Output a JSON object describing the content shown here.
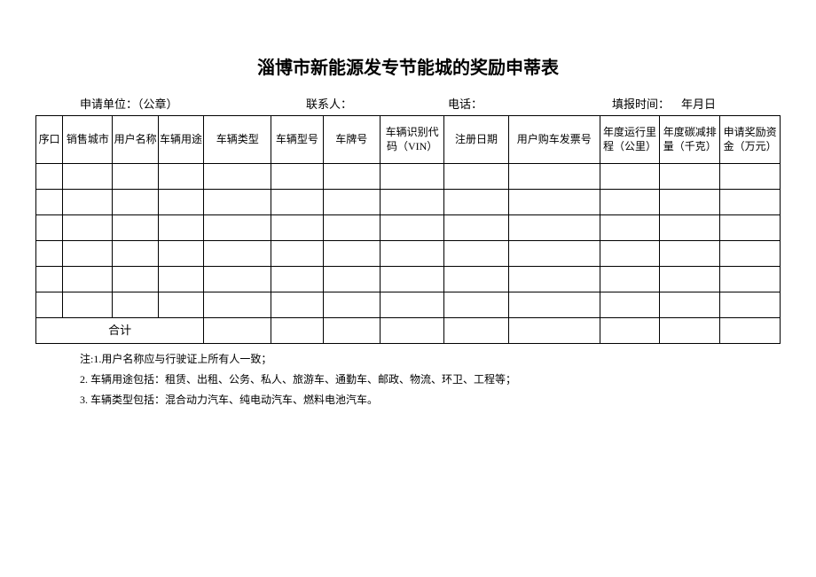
{
  "title": "淄博市新能源发专节能城的奖励申蒂表",
  "info": {
    "applicant_label": "申请单位：（公章）",
    "contact_label": "联系人：",
    "phone_label": "电话：",
    "fill_time_label": "填报时间：",
    "fill_time_value": "年月日"
  },
  "table": {
    "columns": [
      "序口",
      "销售城市",
      "用户名称",
      "车辆用途",
      "车辆类型",
      "车辆型号",
      "车牌号",
      "车辆识别代码（VIN）",
      "注册日期",
      "用户购车发票号",
      "年度运行里程（公里）",
      "年度碳减排量（千克）",
      "申请奖励资金（万元）"
    ],
    "data_row_count": 6,
    "total_label": "合计"
  },
  "notes": {
    "n1": "注:1.用户名称应与行驶证上所有人一致；",
    "n2": "2.  车辆用途包括：租赁、出租、公务、私人、旅游车、通勤车、邮政、物流、环卫、工程等；",
    "n3": "3.  车辆类型包括：混合动力汽车、纯电动汽车、燃料电池汽车。"
  }
}
